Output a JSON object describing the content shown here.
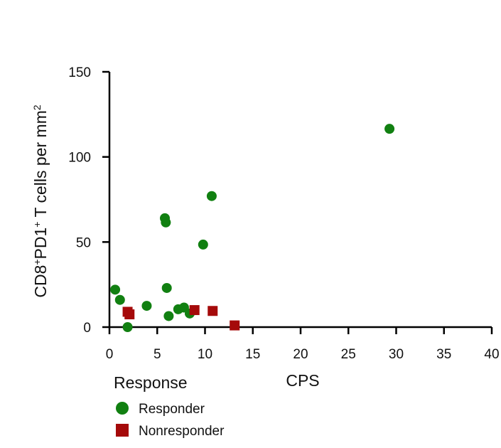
{
  "chart_data": {
    "type": "scatter",
    "xlabel": "CPS",
    "ylabel": {
      "parts": [
        "CD8",
        "+",
        "PD1",
        "+",
        " T cells per mm",
        "2"
      ]
    },
    "xlim": [
      0,
      40
    ],
    "ylim": [
      0,
      150
    ],
    "xticks": [
      0,
      5,
      10,
      15,
      20,
      25,
      30,
      35,
      40
    ],
    "yticks": [
      0,
      50,
      100,
      150
    ],
    "grid": false,
    "legend": {
      "title": "Response",
      "placement": "bottom-left",
      "entries": [
        {
          "label": "Responder",
          "marker": "circle",
          "color": "#118011"
        },
        {
          "label": "Nonresponder",
          "marker": "square",
          "color": "#a50a0a"
        }
      ]
    },
    "series": [
      {
        "name": "Responder",
        "marker": "circle",
        "color": "#118011",
        "points": [
          {
            "x": 0.6,
            "y": 22
          },
          {
            "x": 1.1,
            "y": 16
          },
          {
            "x": 1.9,
            "y": 0
          },
          {
            "x": 3.9,
            "y": 12.5
          },
          {
            "x": 5.8,
            "y": 64
          },
          {
            "x": 5.9,
            "y": 61.5
          },
          {
            "x": 6.0,
            "y": 23
          },
          {
            "x": 6.2,
            "y": 6.5
          },
          {
            "x": 7.2,
            "y": 10.5
          },
          {
            "x": 7.8,
            "y": 11.5
          },
          {
            "x": 8.4,
            "y": 8
          },
          {
            "x": 9.8,
            "y": 48.5
          },
          {
            "x": 10.7,
            "y": 77
          },
          {
            "x": 29.3,
            "y": 116.5
          }
        ]
      },
      {
        "name": "Nonresponder",
        "marker": "square",
        "color": "#a50a0a",
        "points": [
          {
            "x": 1.9,
            "y": 9
          },
          {
            "x": 2.1,
            "y": 7.5
          },
          {
            "x": 8.9,
            "y": 10
          },
          {
            "x": 10.8,
            "y": 9.5
          },
          {
            "x": 13.1,
            "y": 1
          }
        ]
      }
    ]
  }
}
